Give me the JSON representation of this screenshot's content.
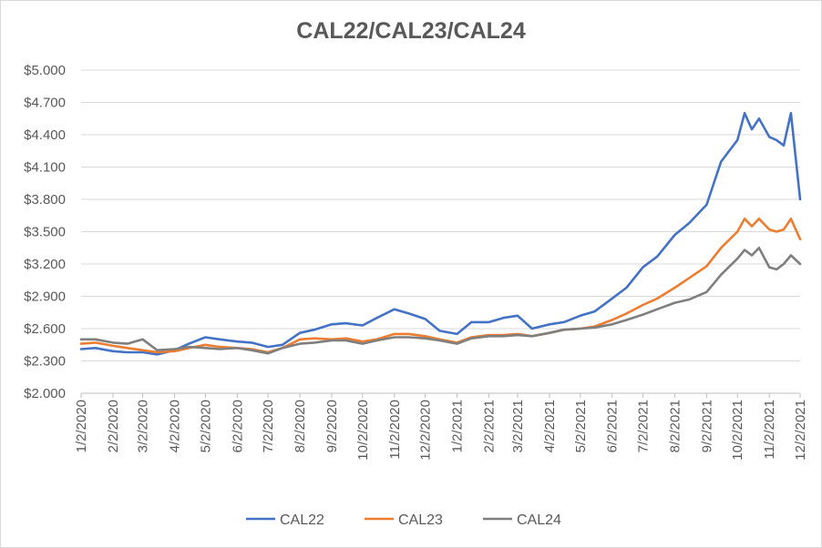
{
  "chart_data": {
    "type": "line",
    "title": "CAL22/CAL23/CAL24",
    "ylim": [
      2.0,
      5.0
    ],
    "y_ticks": [
      "$2.000",
      "$2.300",
      "$2.600",
      "$2.900",
      "$3.200",
      "$3.500",
      "$3.800",
      "$4.100",
      "$4.400",
      "$4.700",
      "$5.000"
    ],
    "x_ticks": [
      "1/2/2020",
      "2/2/2020",
      "3/2/2020",
      "4/2/2020",
      "5/2/2020",
      "6/2/2020",
      "7/2/2020",
      "8/2/2020",
      "9/2/2020",
      "10/2/2020",
      "11/2/2020",
      "12/2/2020",
      "1/2/2021",
      "2/2/2021",
      "3/2/2021",
      "4/2/2021",
      "5/2/2021",
      "6/2/2021",
      "7/2/2021",
      "8/2/2021",
      "9/2/2021",
      "10/2/2021",
      "11/2/2021",
      "12/2/2021"
    ],
    "legend_position": "bottom",
    "grid": "horizontal",
    "x": [
      "1/2/2020",
      "1/16/2020",
      "2/2/2020",
      "2/16/2020",
      "3/2/2020",
      "3/16/2020",
      "4/2/2020",
      "4/16/2020",
      "5/2/2020",
      "5/16/2020",
      "6/2/2020",
      "6/16/2020",
      "7/2/2020",
      "7/16/2020",
      "8/2/2020",
      "8/16/2020",
      "9/2/2020",
      "9/16/2020",
      "10/2/2020",
      "10/16/2020",
      "11/2/2020",
      "11/16/2020",
      "12/2/2020",
      "12/16/2020",
      "1/2/2021",
      "1/16/2021",
      "2/2/2021",
      "2/16/2021",
      "3/2/2021",
      "3/16/2021",
      "4/2/2021",
      "4/16/2021",
      "5/2/2021",
      "5/16/2021",
      "6/2/2021",
      "6/16/2021",
      "7/2/2021",
      "7/16/2021",
      "8/2/2021",
      "8/16/2021",
      "9/2/2021",
      "9/16/2021",
      "10/2/2021",
      "10/9/2021",
      "10/16/2021",
      "10/23/2021",
      "11/2/2021",
      "11/9/2021",
      "11/16/2021",
      "11/23/2021",
      "12/2/2021"
    ],
    "series": [
      {
        "name": "CAL22",
        "color": "#4472c4",
        "values": [
          2.41,
          2.42,
          2.39,
          2.38,
          2.38,
          2.36,
          2.4,
          2.46,
          2.52,
          2.5,
          2.48,
          2.47,
          2.43,
          2.45,
          2.56,
          2.59,
          2.64,
          2.65,
          2.63,
          2.7,
          2.78,
          2.74,
          2.69,
          2.58,
          2.55,
          2.66,
          2.66,
          2.7,
          2.72,
          2.6,
          2.64,
          2.66,
          2.72,
          2.76,
          2.88,
          2.98,
          3.17,
          3.27,
          3.47,
          3.58,
          3.75,
          4.15,
          4.35,
          4.6,
          4.45,
          4.55,
          4.38,
          4.35,
          4.3,
          4.6,
          3.8
        ]
      },
      {
        "name": "CAL23",
        "color": "#ed7d31",
        "values": [
          2.46,
          2.47,
          2.44,
          2.42,
          2.4,
          2.38,
          2.39,
          2.42,
          2.45,
          2.43,
          2.42,
          2.41,
          2.38,
          2.42,
          2.5,
          2.51,
          2.5,
          2.51,
          2.48,
          2.5,
          2.55,
          2.55,
          2.53,
          2.5,
          2.47,
          2.52,
          2.54,
          2.54,
          2.55,
          2.53,
          2.56,
          2.59,
          2.6,
          2.62,
          2.68,
          2.74,
          2.82,
          2.88,
          2.98,
          3.07,
          3.18,
          3.35,
          3.5,
          3.62,
          3.55,
          3.62,
          3.52,
          3.5,
          3.52,
          3.62,
          3.43
        ]
      },
      {
        "name": "CAL24",
        "color": "#7f7f7f",
        "values": [
          2.5,
          2.5,
          2.47,
          2.46,
          2.5,
          2.4,
          2.41,
          2.43,
          2.42,
          2.41,
          2.42,
          2.4,
          2.37,
          2.42,
          2.46,
          2.47,
          2.49,
          2.49,
          2.46,
          2.49,
          2.52,
          2.52,
          2.51,
          2.49,
          2.46,
          2.51,
          2.53,
          2.53,
          2.54,
          2.53,
          2.56,
          2.59,
          2.6,
          2.61,
          2.64,
          2.68,
          2.73,
          2.78,
          2.84,
          2.87,
          2.94,
          3.1,
          3.25,
          3.33,
          3.28,
          3.35,
          3.17,
          3.15,
          3.2,
          3.28,
          3.2
        ]
      }
    ]
  }
}
